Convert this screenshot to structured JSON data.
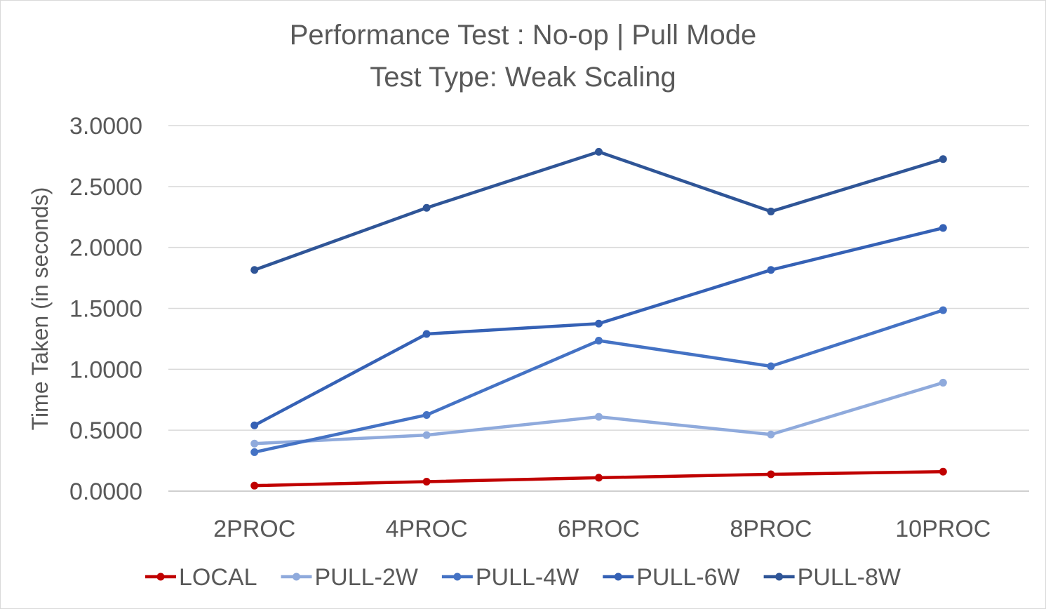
{
  "chart_data": {
    "type": "line",
    "title": "Performance Test : No-op | Pull Mode",
    "subtitle": "Test Type: Weak Scaling",
    "xlabel": "",
    "ylabel": "Time Taken (in seconds)",
    "ylim": [
      0,
      3
    ],
    "y_ticks": [
      "0.0000",
      "0.5000",
      "1.0000",
      "1.5000",
      "2.0000",
      "2.5000",
      "3.0000"
    ],
    "y_tick_values": [
      0,
      0.5,
      1,
      1.5,
      2,
      2.5,
      3
    ],
    "grid": true,
    "legend_position": "bottom",
    "categories": [
      "2PROC",
      "4PROC",
      "6PROC",
      "8PROC",
      "10PROC"
    ],
    "series": [
      {
        "name": "LOCAL",
        "color": "#c00000",
        "values": [
          0.045,
          0.078,
          0.11,
          0.138,
          0.16
        ]
      },
      {
        "name": "PULL-2W",
        "color": "#8faadc",
        "values": [
          0.39,
          0.46,
          0.61,
          0.465,
          0.89
        ]
      },
      {
        "name": "PULL-4W",
        "color": "#4472c4",
        "values": [
          0.32,
          0.625,
          1.235,
          1.025,
          1.485
        ]
      },
      {
        "name": "PULL-6W",
        "color": "#3561b5",
        "values": [
          0.54,
          1.29,
          1.375,
          1.815,
          2.16
        ]
      },
      {
        "name": "PULL-8W",
        "color": "#2f5597",
        "values": [
          1.815,
          2.325,
          2.785,
          2.295,
          2.725
        ]
      }
    ]
  }
}
